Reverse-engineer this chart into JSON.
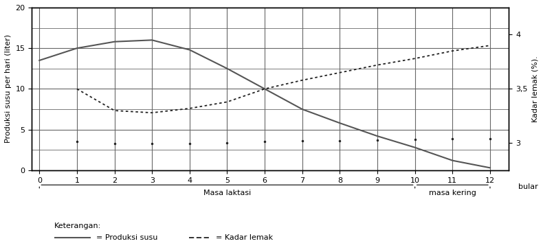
{
  "milk_x": [
    0,
    1,
    2,
    3,
    4,
    5,
    6,
    7,
    8,
    9,
    10,
    11,
    12
  ],
  "milk_y": [
    13.5,
    15,
    15.8,
    16.0,
    14.8,
    12.5,
    10.0,
    7.5,
    5.8,
    4.2,
    2.8,
    1.2,
    0.3
  ],
  "fat_x": [
    1,
    2,
    3,
    4,
    5,
    6,
    7,
    8,
    9,
    10,
    11,
    12
  ],
  "fat_y": [
    3.5,
    3.3,
    3.28,
    3.32,
    3.38,
    3.5,
    3.58,
    3.65,
    3.72,
    3.78,
    3.85,
    3.9
  ],
  "left_ylim": [
    0,
    20
  ],
  "right_ylim": [
    2.75,
    4.25
  ],
  "left_yticks": [
    0,
    5,
    10,
    15,
    20
  ],
  "right_yticks": [
    3.0,
    3.5,
    4.0
  ],
  "right_ytick_labels": [
    "3",
    "3,5",
    "4"
  ],
  "xticks": [
    0,
    1,
    2,
    3,
    4,
    5,
    6,
    7,
    8,
    9,
    10,
    11,
    12
  ],
  "ylabel_left": "Produksi susu per hari (liter)",
  "ylabel_right": "Kadar lemak (%).",
  "x_label_right": "bular",
  "annotation_laktasi": "Masa laktasi",
  "annotation_kering": "masa kering",
  "legend_title": "Keterangan:",
  "legend_solid": "= Produksi susu",
  "legend_dashed": "= Kadar lemak",
  "milk_color": "#555555",
  "fat_color": "#222222",
  "grid_color": "#666666",
  "bg_color": "#ffffff",
  "extra_grid_yticks": [
    2.5,
    7.5,
    12.5,
    17.5
  ]
}
